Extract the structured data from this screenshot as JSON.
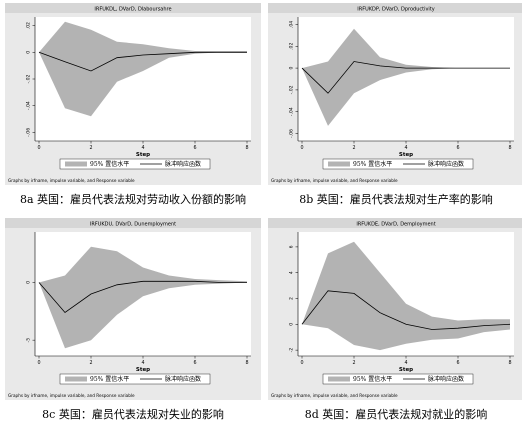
{
  "footnote": "Graphs by irfname, impulse variable, and Response variable",
  "x_axis_label": "Step",
  "legend": {
    "ci_label": "95% 置信水平",
    "line_label": "脉冲响应函数"
  },
  "colors": {
    "band": "#b3b3b3",
    "line": "#000000",
    "frame": "#e9e9e9",
    "header": "#d6d6d6",
    "grid": "#000000"
  },
  "panels": [
    {
      "id": "8a",
      "header": "IRFUKDL, DVarD, Dlaboursahre",
      "caption": "8a 英国：雇员代表法规对劳动收入份额的影响",
      "chart_data": {
        "type": "area",
        "x": [
          0,
          1,
          2,
          3,
          4,
          5,
          6,
          7,
          8
        ],
        "ylim": [
          -0.065,
          0.025
        ],
        "yticks": [
          0.02,
          0,
          -0.02,
          -0.04,
          -0.06
        ],
        "ytick_labels": [
          ".02",
          "0",
          "-.02",
          "-.04",
          "-.06"
        ],
        "xticks": [
          0,
          2,
          4,
          6,
          8
        ],
        "series": [
          {
            "values": [
              0,
              -0.007,
              -0.014,
              -0.004,
              -0.002,
              -0.001,
              0,
              0,
              0
            ]
          },
          {
            "values": [
              0,
              -0.042,
              -0.048,
              -0.022,
              -0.014,
              -0.004,
              -0.001,
              0,
              0
            ]
          },
          {
            "values": [
              0,
              0.023,
              0.017,
              0.008,
              0.006,
              0.003,
              0.001,
              0.001,
              0.001
            ]
          }
        ]
      }
    },
    {
      "id": "8b",
      "header": "IRFUKDP, DVarD, Dproductivity",
      "caption": "8b 英国：雇员代表法规对生产率的影响",
      "chart_data": {
        "type": "area",
        "x": [
          0,
          1,
          2,
          3,
          4,
          5,
          6,
          7,
          8
        ],
        "ylim": [
          -0.065,
          0.045
        ],
        "yticks": [
          0.04,
          0.02,
          0,
          -0.02,
          -0.04,
          -0.06
        ],
        "ytick_labels": [
          ".04",
          ".02",
          "0",
          "-.02",
          "-.04",
          "-.06"
        ],
        "xticks": [
          0,
          2,
          4,
          6,
          8
        ],
        "series": [
          {
            "values": [
              0,
              -0.023,
              0.006,
              0.002,
              0,
              0,
              0,
              0,
              0
            ]
          },
          {
            "values": [
              0,
              -0.053,
              -0.023,
              -0.011,
              -0.004,
              -0.001,
              0,
              0,
              0
            ]
          },
          {
            "values": [
              0,
              0.006,
              0.036,
              0.01,
              0.003,
              0.001,
              0,
              0,
              0
            ]
          }
        ]
      }
    },
    {
      "id": "8c",
      "header": "IRFUKDU, DVarD, Dunemployment",
      "caption": "8c 英国：雇员代表法规对失业的影响",
      "chart_data": {
        "type": "area",
        "x": [
          0,
          1,
          2,
          3,
          4,
          5,
          6,
          7,
          8
        ],
        "ylim": [
          -6.2,
          4.2
        ],
        "yticks": [
          0,
          -5
        ],
        "ytick_labels": [
          "0",
          "-5"
        ],
        "xticks": [
          0,
          2,
          4,
          6,
          8
        ],
        "series": [
          {
            "values": [
              0,
              -2.6,
              -1.0,
              -0.2,
              0.1,
              0.1,
              0.1,
              0,
              0
            ]
          },
          {
            "values": [
              0,
              -5.7,
              -5.0,
              -2.8,
              -1.2,
              -0.5,
              -0.2,
              -0.1,
              0
            ]
          },
          {
            "values": [
              0,
              0.6,
              3.1,
              2.7,
              1.3,
              0.6,
              0.3,
              0.2,
              0.1
            ]
          }
        ]
      }
    },
    {
      "id": "8d",
      "header": "IRFUKDE, DVarD, Demployment",
      "caption": "8d 英国：雇员代表法规对就业的影响",
      "chart_data": {
        "type": "area",
        "x": [
          0,
          1,
          2,
          3,
          4,
          5,
          6,
          7,
          8
        ],
        "ylim": [
          -2.3,
          7
        ],
        "yticks": [
          6,
          4,
          2,
          0,
          -2
        ],
        "ytick_labels": [
          "6",
          "4",
          "2",
          "0",
          "-2"
        ],
        "xticks": [
          0,
          2,
          4,
          6,
          8
        ],
        "series": [
          {
            "values": [
              0,
              2.6,
              2.4,
              0.9,
              0,
              -0.4,
              -0.3,
              -0.1,
              0
            ]
          },
          {
            "values": [
              0,
              -0.3,
              -1.6,
              -2.0,
              -1.5,
              -1.2,
              -1.1,
              -0.6,
              -0.4
            ]
          },
          {
            "values": [
              0,
              5.5,
              6.4,
              4.0,
              1.6,
              0.6,
              0.3,
              0.4,
              0.4
            ]
          }
        ]
      }
    }
  ]
}
